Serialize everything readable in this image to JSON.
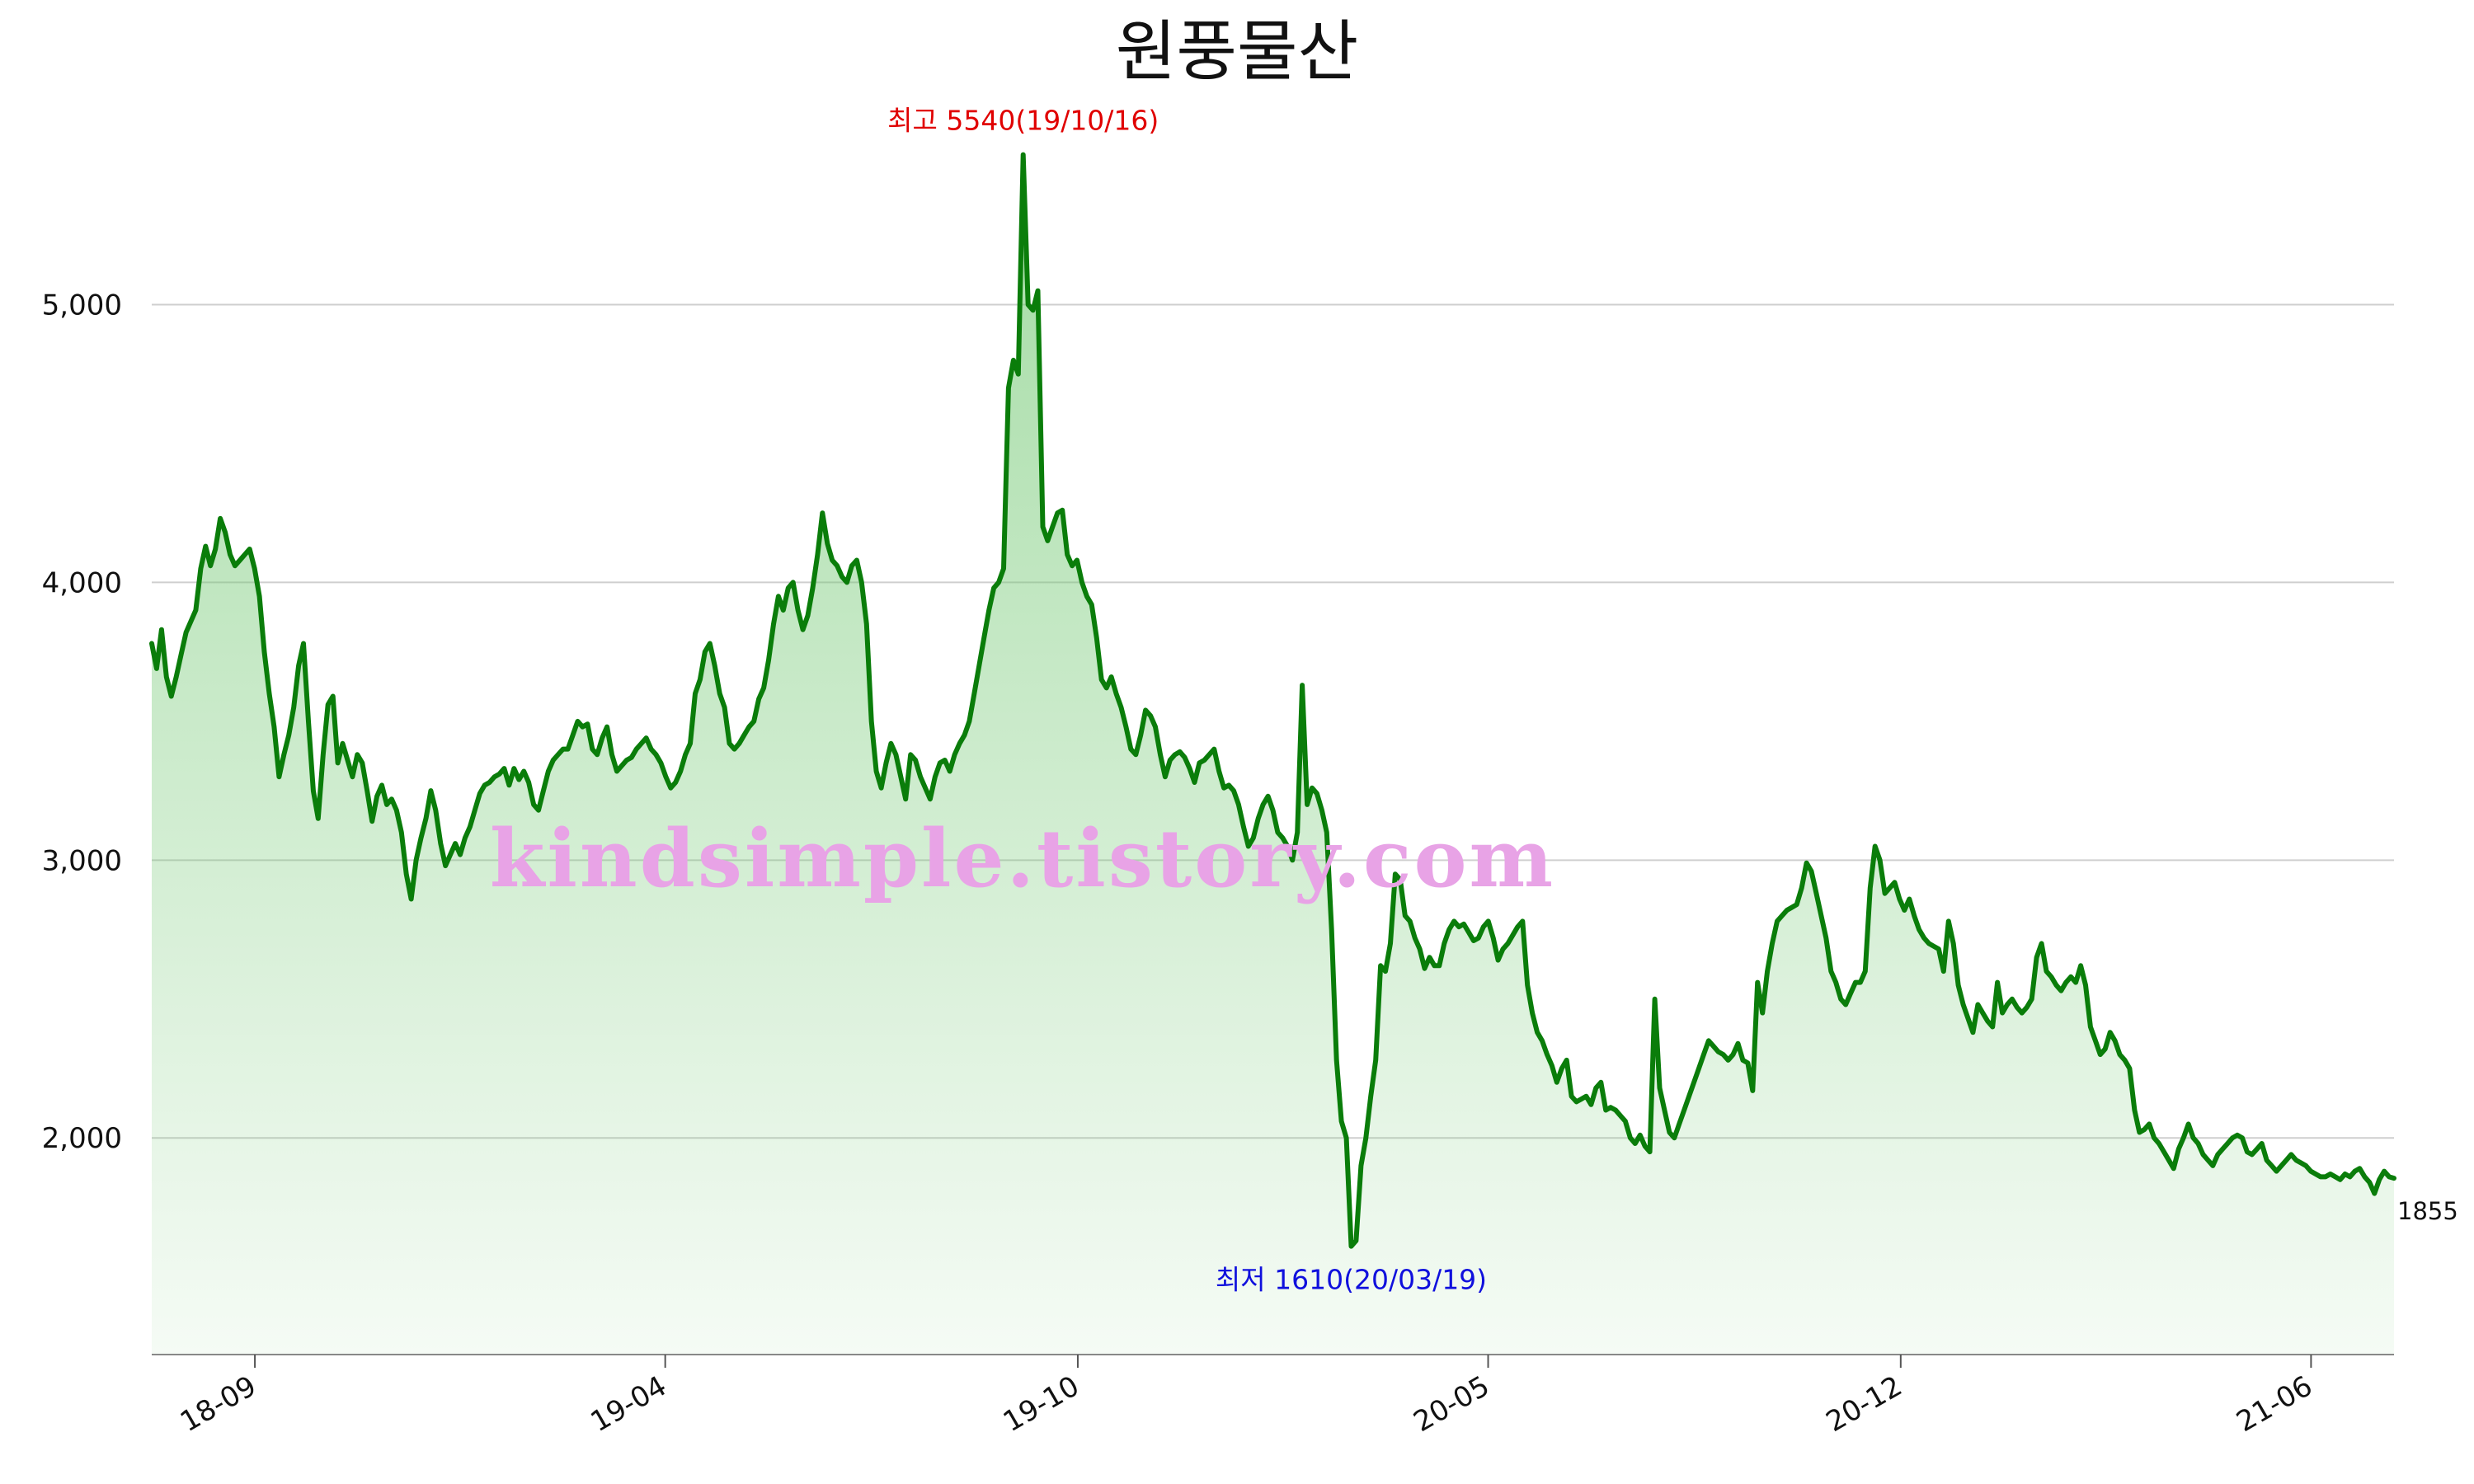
{
  "chart_data": {
    "type": "area",
    "title": "원풍물산",
    "xlabel": "",
    "ylabel": "",
    "ylim": [
      1220,
      5800
    ],
    "yticks": [
      2000,
      3000,
      4000,
      5000
    ],
    "ytick_labels": [
      "2,000",
      "3,000",
      "4,000",
      "5,000"
    ],
    "xticks": [
      "18-09",
      "19-04",
      "19-10",
      "20-05",
      "20-12",
      "21-06"
    ],
    "grid": "horizontal",
    "line_color": "#0a7d0a",
    "fill_color": "#7ccf7c",
    "series": [
      {
        "values": [
          3780,
          3690,
          3830,
          3660,
          3590,
          3660,
          3740,
          3820,
          3860,
          3900,
          4050,
          4130,
          4060,
          4120,
          4230,
          4180,
          4100,
          4060,
          4080,
          4100,
          4120,
          4050,
          3950,
          3750,
          3600,
          3480,
          3300,
          3380,
          3450,
          3550,
          3700,
          3780,
          3500,
          3250,
          3150,
          3380,
          3560,
          3590,
          3350,
          3420,
          3360,
          3300,
          3380,
          3350,
          3250,
          3140,
          3230,
          3270,
          3200,
          3220,
          3180,
          3100,
          2950,
          2860,
          3000,
          3080,
          3150,
          3250,
          3180,
          3060,
          2980,
          3020,
          3060,
          3020,
          3080,
          3120,
          3180,
          3240,
          3270,
          3280,
          3300,
          3310,
          3330,
          3270,
          3330,
          3290,
          3320,
          3280,
          3200,
          3180,
          3250,
          3320,
          3360,
          3380,
          3400,
          3400,
          3450,
          3500,
          3480,
          3490,
          3400,
          3380,
          3440,
          3480,
          3380,
          3320,
          3340,
          3360,
          3370,
          3400,
          3420,
          3440,
          3400,
          3380,
          3350,
          3300,
          3260,
          3280,
          3320,
          3380,
          3420,
          3600,
          3650,
          3750,
          3780,
          3700,
          3600,
          3550,
          3420,
          3400,
          3420,
          3450,
          3480,
          3500,
          3580,
          3620,
          3720,
          3850,
          3950,
          3900,
          3980,
          4000,
          3900,
          3830,
          3880,
          3980,
          4100,
          4250,
          4140,
          4080,
          4060,
          4020,
          4000,
          4060,
          4080,
          4000,
          3850,
          3500,
          3320,
          3260,
          3350,
          3420,
          3380,
          3300,
          3220,
          3380,
          3360,
          3300,
          3260,
          3220,
          3300,
          3350,
          3360,
          3320,
          3380,
          3420,
          3450,
          3500,
          3600,
          3700,
          3800,
          3900,
          3980,
          4000,
          4050,
          4700,
          4800,
          4750,
          5540,
          5000,
          4980,
          5050,
          4200,
          4150,
          4200,
          4250,
          4260,
          4100,
          4060,
          4080,
          4000,
          3950,
          3920,
          3800,
          3650,
          3620,
          3660,
          3600,
          3550,
          3480,
          3400,
          3380,
          3450,
          3540,
          3520,
          3480,
          3380,
          3300,
          3360,
          3380,
          3390,
          3370,
          3330,
          3280,
          3350,
          3360,
          3380,
          3400,
          3320,
          3260,
          3270,
          3250,
          3200,
          3120,
          3050,
          3080,
          3150,
          3200,
          3230,
          3180,
          3100,
          3080,
          3050,
          3000,
          3100,
          3630,
          3200,
          3260,
          3240,
          3180,
          3100,
          2750,
          2280,
          2060,
          2000,
          1610,
          1630,
          1900,
          2000,
          2150,
          2280,
          2620,
          2600,
          2700,
          2950,
          2930,
          2800,
          2780,
          2720,
          2680,
          2610,
          2650,
          2620,
          2620,
          2700,
          2750,
          2780,
          2760,
          2770,
          2740,
          2710,
          2720,
          2760,
          2780,
          2720,
          2640,
          2680,
          2700,
          2730,
          2760,
          2780,
          2550,
          2450,
          2380,
          2350,
          2300,
          2260,
          2200,
          2250,
          2280,
          2150,
          2130,
          2140,
          2150,
          2120,
          2180,
          2200,
          2100,
          2110,
          2100,
          2080,
          2060,
          2000,
          1980,
          2010,
          1970,
          1950,
          2500,
          2180,
          2100,
          2020,
          2000,
          2050,
          2100,
          2150,
          2200,
          2250,
          2300,
          2350,
          2330,
          2310,
          2300,
          2280,
          2300,
          2340,
          2280,
          2270,
          2170,
          2560,
          2450,
          2600,
          2700,
          2780,
          2800,
          2820,
          2830,
          2840,
          2900,
          2990,
          2960,
          2880,
          2800,
          2720,
          2600,
          2560,
          2500,
          2480,
          2520,
          2560,
          2560,
          2600,
          2900,
          3050,
          3000,
          2880,
          2900,
          2920,
          2860,
          2820,
          2860,
          2800,
          2750,
          2720,
          2700,
          2690,
          2680,
          2600,
          2780,
          2700,
          2550,
          2480,
          2430,
          2380,
          2480,
          2450,
          2420,
          2400,
          2560,
          2450,
          2480,
          2500,
          2470,
          2450,
          2470,
          2500,
          2650,
          2700,
          2600,
          2580,
          2550,
          2530,
          2560,
          2580,
          2560,
          2620,
          2550,
          2400,
          2350,
          2300,
          2320,
          2380,
          2350,
          2300,
          2280,
          2250,
          2100,
          2020,
          2030,
          2050,
          2000,
          1980,
          1950,
          1920,
          1890,
          1960,
          2000,
          2050,
          2000,
          1980,
          1940,
          1920,
          1900,
          1940,
          1960,
          1980,
          2000,
          2010,
          2000,
          1950,
          1940,
          1960,
          1980,
          1920,
          1900,
          1880,
          1900,
          1920,
          1940,
          1920,
          1910,
          1900,
          1880,
          1870,
          1860,
          1860,
          1870,
          1860,
          1850,
          1870,
          1860,
          1880,
          1890,
          1860,
          1840,
          1800,
          1850,
          1880,
          1860,
          1855
        ]
      }
    ],
    "annotations": {
      "high": "최고 5540(19/10/16)",
      "low": "최저 1610(20/03/19)",
      "last": "1855"
    },
    "high_color": "#e00000",
    "low_color": "#1010dd",
    "watermark": "kindsimple.tistory.com"
  }
}
